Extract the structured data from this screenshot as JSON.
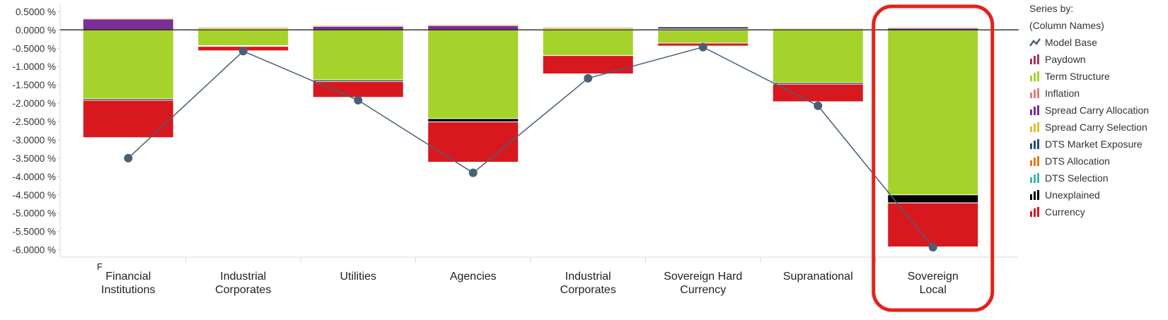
{
  "chart_data": {
    "type": "bar",
    "stacked": true,
    "categories": [
      "Financial Institutions",
      "Industrial Corporates",
      "Utilities",
      "Agencies",
      "Industrial Corporates",
      "Sovereign Hard Currency",
      "Supranational",
      "Sovereign Local"
    ],
    "ytick_labels": [
      "0.5000 %",
      "0.0000 %",
      "-0.5000 %",
      "-1.0000 %",
      "-1.5000 %",
      "-2.0000 %",
      "-2.5000 %",
      "-3.0000 %",
      "-3.5000 %",
      "-4.0000 %",
      "-4.5000 %",
      "-5.0000 %",
      "-5.5000 %",
      "-6.0000 %"
    ],
    "ylim": [
      -6.2,
      0.7
    ],
    "legend_title": [
      "Series by:",
      "(Column Names)"
    ],
    "legend_position": "right",
    "highlighted_category_index": 7,
    "highlight_color": "#e2231a",
    "stray_label": "F",
    "series": [
      {
        "name": "Model Base",
        "kind": "line",
        "color": "#4a5f75",
        "values": [
          -3.5,
          -0.58,
          -1.92,
          -3.9,
          -1.32,
          -0.47,
          -2.07,
          -5.93
        ]
      },
      {
        "name": "Paydown",
        "kind": "bar",
        "color": "#a4385a",
        "values": [
          0,
          0,
          0,
          0,
          0,
          0,
          0,
          0
        ]
      },
      {
        "name": "Term Structure",
        "kind": "bar",
        "color": "#a6d22c",
        "values": [
          -1.88,
          -0.43,
          -1.37,
          -2.42,
          -0.7,
          -0.36,
          -1.44,
          -4.5
        ]
      },
      {
        "name": "Inflation",
        "kind": "bar",
        "color": "#e27c82",
        "values": [
          0,
          0,
          0,
          0,
          0,
          0,
          0,
          0
        ]
      },
      {
        "name": "Spread Carry Allocation",
        "kind": "bar",
        "color": "#7b2f96",
        "values": [
          0.3,
          0.02,
          0.1,
          0.12,
          0.02,
          0.01,
          0.02,
          0.05
        ]
      },
      {
        "name": "Spread Carry Selection",
        "kind": "bar",
        "color": "#e3bd34",
        "values": [
          0.03,
          0.05,
          0.03,
          0.03,
          0.05,
          0.02,
          0.03,
          0.03
        ]
      },
      {
        "name": "DTS Market Exposure",
        "kind": "bar",
        "color": "#22507a",
        "values": [
          0,
          0,
          0,
          0,
          0,
          0,
          0,
          0
        ]
      },
      {
        "name": "DTS Allocation",
        "kind": "bar",
        "color": "#e07a1f",
        "values": [
          0,
          0,
          0,
          0,
          0,
          0,
          0,
          0
        ]
      },
      {
        "name": "DTS Selection",
        "kind": "bar",
        "color": "#3fb8b1",
        "values": [
          0,
          0,
          0,
          0,
          0,
          0,
          0,
          0
        ]
      },
      {
        "name": "Unexplained",
        "kind": "bar",
        "color": "#000000",
        "values": [
          -0.04,
          -0.02,
          -0.04,
          -0.09,
          0,
          0.05,
          -0.04,
          -0.22
        ]
      },
      {
        "name": "Currency",
        "kind": "bar",
        "color": "#d7191f",
        "values": [
          -1.02,
          -0.12,
          -0.43,
          -1.1,
          -0.5,
          -0.08,
          -0.48,
          -1.2
        ]
      }
    ]
  }
}
